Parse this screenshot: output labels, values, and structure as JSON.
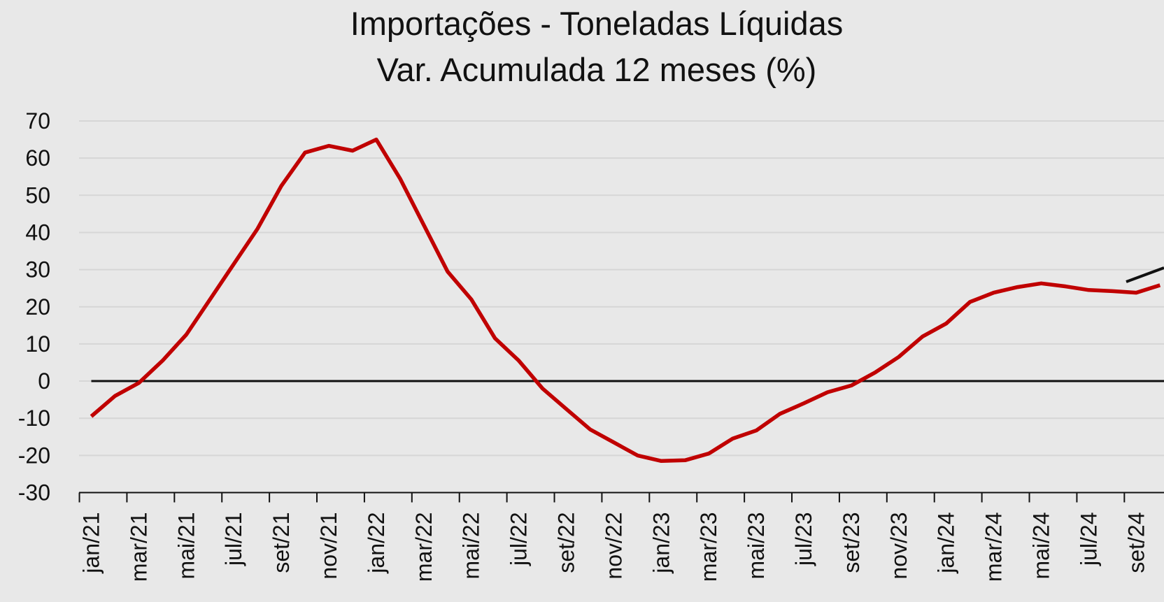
{
  "chart_data": {
    "type": "line",
    "title": "Importações - Toneladas Líquidas",
    "subtitle": "Var. Acumulada 12 meses (%)",
    "categories": [
      "jan/21",
      null,
      "mar/21",
      null,
      "mai/21",
      null,
      "jul/21",
      null,
      "set/21",
      null,
      "nov/21",
      null,
      "jan/22",
      null,
      "mar/22",
      null,
      "mai/22",
      null,
      "jul/22",
      null,
      "set/22",
      null,
      "nov/22",
      null,
      "jan/23",
      null,
      "mar/23",
      null,
      "mai/23",
      null,
      "jul/23",
      null,
      "set/23",
      null,
      "nov/23",
      null,
      "jan/24",
      null,
      "mar/24",
      null,
      "mai/24",
      null,
      "jul/24",
      null,
      "set/24",
      null
    ],
    "series": [
      {
        "color": "#c00000",
        "values": [
          -9.5,
          -4,
          -0.5,
          5.5,
          12.5,
          22,
          31.5,
          41,
          52.5,
          61.5,
          63.3,
          62,
          65,
          54.5,
          42,
          29.5,
          22,
          11.5,
          5.5,
          -2,
          -7.5,
          -13,
          -16.5,
          -20,
          -21.5,
          -21.3,
          -19.5,
          -15.5,
          -13.3,
          -8.8,
          -6,
          -3,
          -1.2,
          2.3,
          6.5,
          12,
          15.5,
          21.3,
          23.8,
          25.3,
          26.3,
          25.5,
          24.5,
          24.2,
          23.8,
          25.8
        ]
      }
    ],
    "ylim": [
      -30,
      70
    ],
    "yticks": [
      -30,
      -20,
      -10,
      0,
      10,
      20,
      30,
      40,
      50,
      60,
      70
    ],
    "grid": true
  }
}
